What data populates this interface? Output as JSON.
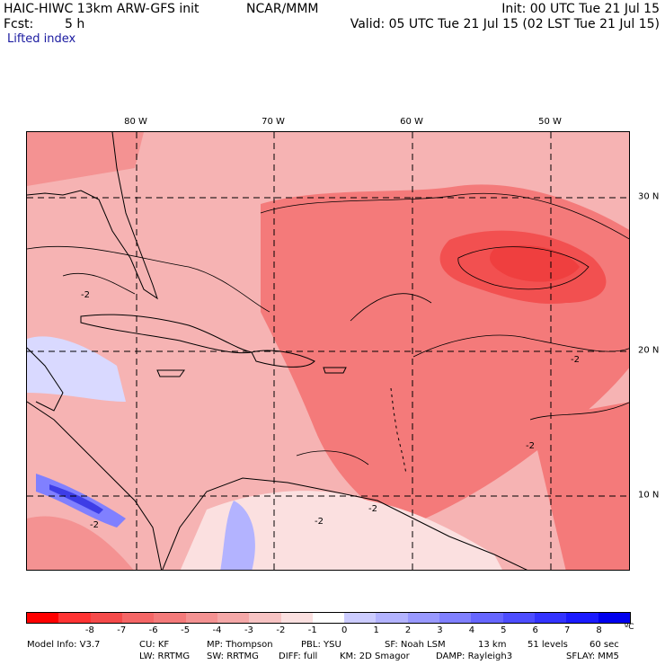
{
  "header": {
    "title": "HAIC-HIWC 13km ARW-GFS init",
    "org": "NCAR/MMM",
    "init": "Init: 00 UTC Tue 21 Jul 15",
    "fcst_label": "Fcst:",
    "fcst_value": "5 h",
    "valid": "Valid: 05 UTC Tue 21 Jul 15 (02 LST Tue 21 Jul 15)",
    "field": "Lifted index"
  },
  "map": {
    "longitude_labels": [
      "80 W",
      "70 W",
      "60 W",
      "50 W"
    ],
    "latitude_labels": [
      "30 N",
      "20 N",
      "10 N"
    ],
    "contour_labels": [
      "-2",
      "-2",
      "-2",
      "-2",
      "-2",
      "-2"
    ],
    "background_color": "#f6b3b3",
    "max_region_color": "#f25050",
    "min_region_color": "#3d3de6"
  },
  "colorbar": {
    "colors": [
      "#ff0000",
      "#ff3333",
      "#f54a4a",
      "#f56666",
      "#f47a7a",
      "#f49292",
      "#f5a8a8",
      "#f7c3c3",
      "#fbe0e0",
      "#ffffff",
      "#ccccff",
      "#b3b3ff",
      "#9999ff",
      "#8080ff",
      "#6666ff",
      "#4d4dff",
      "#3333ff",
      "#1a1aff",
      "#0000ee"
    ],
    "tick_labels": [
      "-8",
      "-7",
      "-6",
      "-5",
      "-4",
      "-3",
      "-2",
      "-1",
      "0",
      "1",
      "2",
      "3",
      "4",
      "5",
      "6",
      "7",
      "8"
    ],
    "unit": "ºC"
  },
  "footer": {
    "line1": [
      "Model Info: V3.7",
      "CU: KF",
      "MP: Thompson",
      "PBL: YSU",
      "SF: Noah LSM",
      "13 km",
      "51 levels",
      "60 sec"
    ],
    "line2": [
      "LW: RRTMG",
      "SW: RRTMG",
      "DIFF: full",
      "KM: 2D Smagor",
      "DAMP: Rayleigh3",
      "SFLAY: MM5"
    ]
  }
}
